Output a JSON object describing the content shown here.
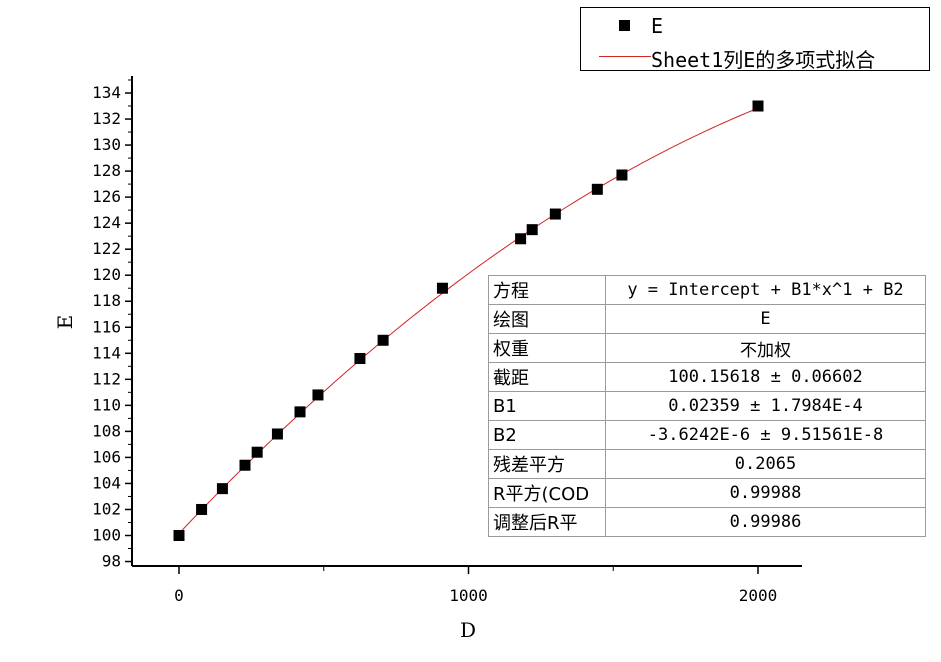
{
  "chart_data": {
    "type": "scatter",
    "xlabel": "D",
    "ylabel": "E",
    "xlim": [
      -150,
      2150
    ],
    "ylim": [
      97.5,
      135.5
    ],
    "x_ticks": [
      0,
      1000,
      2000
    ],
    "x_tick_labels": [
      "0",
      "1000",
      "2000"
    ],
    "y_ticks": [
      98,
      100,
      102,
      104,
      106,
      108,
      110,
      112,
      114,
      116,
      118,
      120,
      122,
      124,
      126,
      128,
      130,
      132,
      134
    ],
    "y_tick_labels": [
      "98",
      "100",
      "102",
      "104",
      "106",
      "108",
      "110",
      "112",
      "114",
      "116",
      "118",
      "120",
      "122",
      "124",
      "126",
      "128",
      "130",
      "132",
      "134"
    ],
    "grid": false,
    "legend_position": "top-right",
    "series": [
      {
        "name": "E",
        "kind": "scatter",
        "color": "#000000",
        "x": [
          0,
          78,
          150,
          228,
          270,
          340,
          418,
          480,
          625,
          705,
          910,
          1180,
          1220,
          1300,
          1445,
          1530,
          2000
        ],
        "y": [
          100.0,
          102.0,
          103.6,
          105.4,
          106.4,
          107.8,
          109.5,
          110.8,
          113.6,
          115.0,
          119.0,
          122.8,
          123.5,
          124.7,
          126.6,
          127.7,
          133.0
        ]
      },
      {
        "name": "Sheet1列E的多项式拟合",
        "kind": "line",
        "color": "#d32424",
        "intercept": 100.15618,
        "b1": 0.02359,
        "b2": -3.6242e-06,
        "x_range": [
          0,
          2000
        ]
      }
    ]
  },
  "legend": {
    "items": [
      {
        "label": "E",
        "symbol": "square-marker-icon"
      },
      {
        "label": "Sheet1列E的多项式拟合",
        "symbol": "red-line-icon"
      }
    ]
  },
  "fit_table": {
    "rows": [
      {
        "key": "方程",
        "value": "y = Intercept + B1*x^1 + B2"
      },
      {
        "key": "绘图",
        "value": "E"
      },
      {
        "key": "权重",
        "value": "不加权"
      },
      {
        "key": "截距",
        "value": "100.15618 ± 0.06602"
      },
      {
        "key": "B1",
        "value": "0.02359 ± 1.7984E-4"
      },
      {
        "key": "B2",
        "value": "-3.6242E-6 ± 9.51561E-8"
      },
      {
        "key": "残差平方",
        "value": "0.2065"
      },
      {
        "key": "R平方(COD",
        "value": "0.99988"
      },
      {
        "key": "调整后R平",
        "value": "0.99986"
      }
    ]
  }
}
